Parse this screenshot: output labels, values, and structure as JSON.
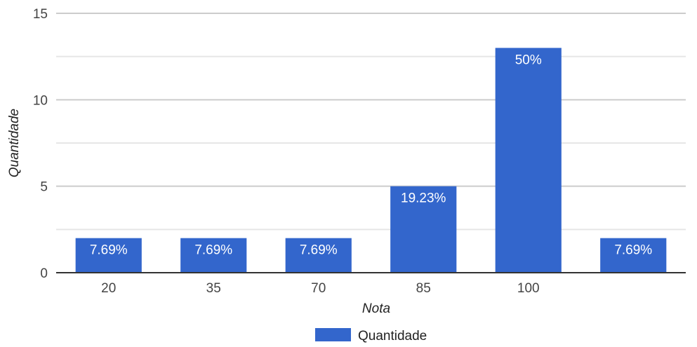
{
  "chart_data": {
    "type": "bar",
    "categories": [
      "20",
      "35",
      "70",
      "85",
      "100",
      ""
    ],
    "series": [
      {
        "name": "Quantidade",
        "values": [
          2,
          2,
          2,
          5,
          13,
          2
        ],
        "data_labels": [
          "7.69%",
          "7.69%",
          "7.69%",
          "19.23%",
          "50%",
          "7.69%"
        ]
      }
    ],
    "xlabel": "Nota",
    "ylabel": "Quantidade",
    "ylim": [
      0,
      15
    ],
    "yticks": [
      "0",
      "5",
      "10",
      "15"
    ],
    "ytick_values": [
      0,
      5,
      10,
      15
    ],
    "grid": true,
    "legend_position": "bottom",
    "colors": {
      "bar": "#3366cc",
      "grid": "#e6e6e6",
      "major_grid": "#cccccc",
      "baseline": "#333333"
    }
  }
}
